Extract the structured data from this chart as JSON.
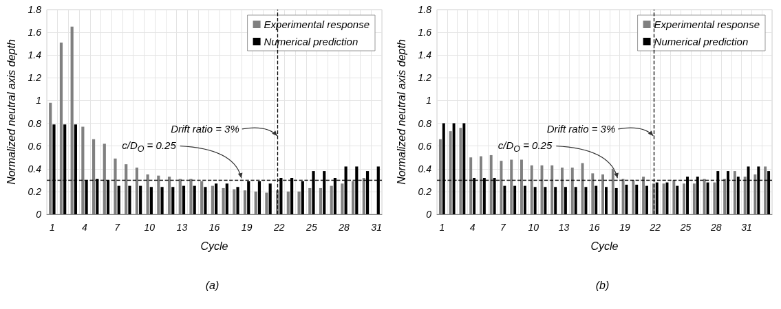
{
  "chart_data": [
    {
      "type": "bar",
      "xlabel": "Cycle",
      "ylabel": "Normalized neutral axis depth",
      "categories": [
        "1",
        null,
        null,
        "4",
        null,
        null,
        "7",
        null,
        null,
        "10",
        null,
        null,
        "13",
        null,
        null,
        "16",
        null,
        null,
        "19",
        null,
        null,
        "22",
        null,
        null,
        "25",
        null,
        null,
        "28",
        null,
        null,
        "31"
      ],
      "series": [
        {
          "name": "Experimental response",
          "color": "#808080",
          "values": [
            0.98,
            1.51,
            1.65,
            0.77,
            0.66,
            0.62,
            0.49,
            0.44,
            0.41,
            0.35,
            0.34,
            0.33,
            0.31,
            0.31,
            0.29,
            0.25,
            0.23,
            0.22,
            0.21,
            0.2,
            0.19,
            0.21,
            0.2,
            0.2,
            0.23,
            0.23,
            0.25,
            0.27,
            0.29,
            0.32,
            null
          ]
        },
        {
          "name": "Numerical prediction",
          "color": "#000000",
          "values": [
            0.79,
            0.79,
            0.79,
            0.3,
            0.31,
            0.3,
            0.25,
            0.25,
            0.25,
            0.24,
            0.24,
            0.24,
            0.25,
            0.25,
            0.24,
            0.27,
            0.27,
            0.24,
            0.29,
            0.29,
            0.27,
            0.32,
            0.32,
            0.29,
            0.38,
            0.38,
            0.32,
            0.42,
            0.42,
            0.38,
            0.42
          ]
        }
      ],
      "ylim": [
        0,
        1.8
      ],
      "yticks": [
        0,
        0.2,
        0.4,
        0.6,
        0.8,
        1,
        1.2,
        1.4,
        1.6,
        1.8
      ],
      "grid": true,
      "legend": "top right",
      "ref_lines": [
        {
          "axis": "x",
          "value": "22",
          "label": "Drift ratio = 3%",
          "line_style": "dashed"
        },
        {
          "axis": "y",
          "value": 0.3,
          "line_style": "dashed"
        }
      ],
      "annotations": [
        {
          "text": "c/D$_{O}$ = 0.25",
          "y": 0.3
        },
        "(a)"
      ]
    },
    {
      "type": "bar",
      "xlabel": "Cycle",
      "ylabel": "Normalized neutral axis depth",
      "categories": [
        "1",
        null,
        null,
        "4",
        null,
        null,
        "7",
        null,
        null,
        "10",
        null,
        null,
        "13",
        null,
        null,
        "16",
        null,
        null,
        "19",
        null,
        null,
        "22",
        null,
        null,
        "25",
        null,
        null,
        "28",
        null,
        null,
        "31",
        null,
        null
      ],
      "series": [
        {
          "name": "Experimental response",
          "color": "#808080",
          "values": [
            0.66,
            0.73,
            0.76,
            0.5,
            0.51,
            0.52,
            0.47,
            0.48,
            0.48,
            0.43,
            0.43,
            0.43,
            0.41,
            0.41,
            0.45,
            0.36,
            0.35,
            0.4,
            0.31,
            0.3,
            0.33,
            0.27,
            0.27,
            0.3,
            0.27,
            0.27,
            0.31,
            0.28,
            0.31,
            0.38,
            0.33,
            0.35,
            0.42
          ]
        },
        {
          "name": "Numerical prediction",
          "color": "#000000",
          "values": [
            0.8,
            0.8,
            0.8,
            0.32,
            0.32,
            0.32,
            0.25,
            0.25,
            0.25,
            0.24,
            0.24,
            0.24,
            0.24,
            0.24,
            0.24,
            0.25,
            0.24,
            0.23,
            0.26,
            0.26,
            0.25,
            0.28,
            0.28,
            0.25,
            0.33,
            0.33,
            0.28,
            0.38,
            0.38,
            0.33,
            0.42,
            0.42,
            0.38
          ]
        }
      ],
      "ylim": [
        0,
        1.8
      ],
      "yticks": [
        0,
        0.2,
        0.4,
        0.6,
        0.8,
        1,
        1.2,
        1.4,
        1.6,
        1.8
      ],
      "grid": true,
      "legend": "top right",
      "ref_lines": [
        {
          "axis": "x",
          "value": "22",
          "label": "Drift ratio = 3%",
          "line_style": "dashed"
        },
        {
          "axis": "y",
          "value": 0.3,
          "line_style": "dashed"
        }
      ],
      "annotations": [
        {
          "text": "c/D$_{O}$ = 0.25",
          "y": 0.3
        },
        "(b)"
      ]
    }
  ]
}
